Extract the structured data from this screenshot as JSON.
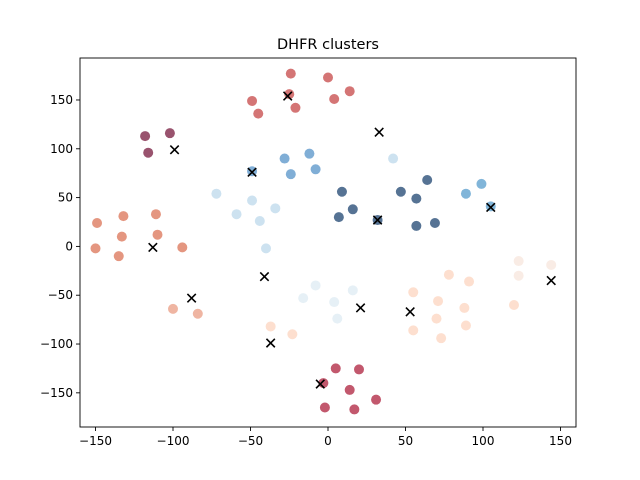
{
  "chart_data": {
    "type": "scatter",
    "title": "DHFR clusters",
    "xlabel": "",
    "ylabel": "",
    "xlim": [
      -160,
      160
    ],
    "ylim": [
      -185,
      193
    ],
    "xticks": [
      -150,
      -100,
      -50,
      0,
      50,
      100,
      150
    ],
    "yticks": [
      -150,
      -100,
      -50,
      0,
      50,
      100,
      150
    ],
    "grid": false,
    "legend": "none",
    "point_opacity": 0.7,
    "clusters": [
      {
        "color": "#c23b3b",
        "points": [
          [
            -24,
            177
          ],
          [
            0,
            173
          ],
          [
            14,
            159
          ],
          [
            -49,
            149
          ],
          [
            4,
            151
          ],
          [
            -21,
            142
          ],
          [
            -45,
            136
          ],
          [
            -25,
            156
          ]
        ],
        "center": [
          -26,
          154
        ]
      },
      {
        "color": "#6e0a30",
        "points": [
          [
            -118,
            113
          ],
          [
            -102,
            116
          ],
          [
            -116,
            96
          ]
        ],
        "center": [
          -99,
          99
        ]
      },
      {
        "color": "#4a8cc4",
        "points": [
          [
            -12,
            95
          ],
          [
            -28,
            90
          ],
          [
            -8,
            79
          ],
          [
            -24,
            74
          ],
          [
            -49,
            77
          ]
        ],
        "center": [
          -49,
          76
        ]
      },
      {
        "color": "#b8d5ea",
        "points": [
          [
            -72,
            54
          ],
          [
            -49,
            47
          ],
          [
            -34,
            39
          ],
          [
            -59,
            33
          ],
          [
            -44,
            26
          ],
          [
            -40,
            -2
          ],
          [
            42,
            90
          ]
        ],
        "center": [
          33,
          117
        ]
      },
      {
        "color": "#0e3767",
        "points": [
          [
            9,
            56
          ],
          [
            16,
            38
          ],
          [
            7,
            30
          ],
          [
            32,
            27
          ],
          [
            47,
            56
          ],
          [
            64,
            68
          ],
          [
            57,
            49
          ],
          [
            57,
            21
          ],
          [
            69,
            24
          ]
        ],
        "center": [
          32,
          27
        ]
      },
      {
        "color": "#4b95c9",
        "points": [
          [
            89,
            54
          ],
          [
            99,
            64
          ],
          [
            105,
            41
          ]
        ],
        "center": [
          105,
          40
        ]
      },
      {
        "color": "#d96a4a",
        "points": [
          [
            -149,
            24
          ],
          [
            -132,
            31
          ],
          [
            -111,
            33
          ],
          [
            -133,
            10
          ],
          [
            -110,
            12
          ],
          [
            -150,
            -2
          ],
          [
            -94,
            -1
          ],
          [
            -135,
            -10
          ]
        ],
        "center": [
          -113,
          -1
        ]
      },
      {
        "color": "#e8957a",
        "points": [
          [
            -100,
            -64
          ],
          [
            -84,
            -69
          ]
        ],
        "center": [
          -88,
          -53
        ]
      },
      {
        "color": "#fcd2bb",
        "points": [
          [
            -37,
            -82
          ],
          [
            -23,
            -90
          ],
          [
            55,
            -47
          ],
          [
            78,
            -29
          ],
          [
            91,
            -36
          ],
          [
            71,
            -56
          ],
          [
            70,
            -74
          ],
          [
            88,
            -63
          ],
          [
            89,
            -81
          ],
          [
            73,
            -94
          ],
          [
            55,
            -86
          ],
          [
            120,
            -60
          ]
        ],
        "center": [
          53,
          -67
        ]
      },
      {
        "color": "#dce9f2",
        "points": [
          [
            -8,
            -40
          ],
          [
            -16,
            -53
          ],
          [
            16,
            -45
          ],
          [
            4,
            -57
          ],
          [
            6,
            -74
          ]
        ],
        "center": [
          21,
          -63
        ]
      },
      {
        "color": "#f6e4da",
        "points": [
          [
            123,
            -15
          ],
          [
            123,
            -30
          ],
          [
            144,
            -19
          ]
        ],
        "center": [
          144,
          -35
        ]
      },
      {
        "color": "#a8112f",
        "points": [
          [
            5,
            -125
          ],
          [
            20,
            -126
          ],
          [
            14,
            -147
          ],
          [
            -3,
            -140
          ],
          [
            -2,
            -165
          ],
          [
            17,
            -167
          ],
          [
            31,
            -157
          ]
        ],
        "center": [
          -5,
          -141
        ]
      }
    ],
    "extra_centers": [
      [
        -37,
        -99
      ],
      [
        -41,
        -31
      ]
    ]
  }
}
